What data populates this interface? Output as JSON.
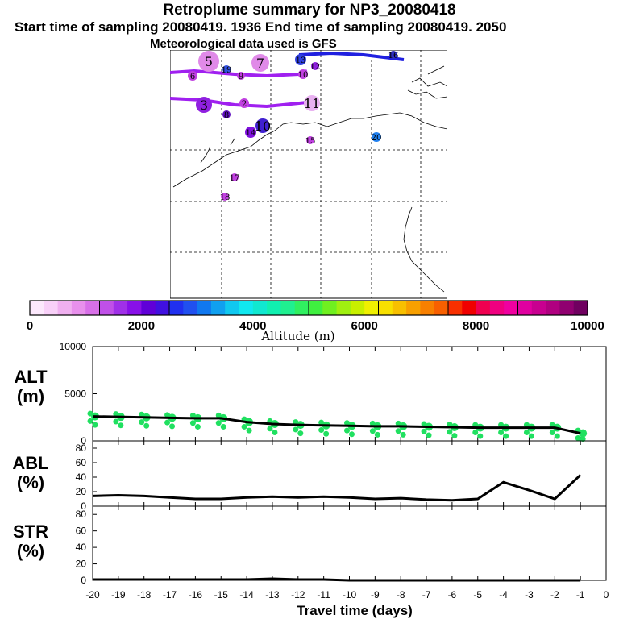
{
  "header": {
    "title": "Retroplume summary for NP3_20080418",
    "subtitle": "Start time of sampling 20080419.  1936     End time of sampling 20080419.  2050",
    "met": "Meteorological data used is GFS"
  },
  "map": {
    "markers": [
      {
        "n": "5",
        "c": "#e08ae8"
      },
      {
        "n": "7",
        "c": "#e08ae8"
      },
      {
        "n": "6",
        "c": "#c040e0"
      },
      {
        "n": "13",
        "c": "#3040e0"
      },
      {
        "n": "12",
        "c": "#9020e0"
      },
      {
        "n": "16",
        "c": "#3030c0"
      },
      {
        "n": "9",
        "c": "#c040e0"
      },
      {
        "n": "10",
        "c": "#c040e0"
      },
      {
        "n": "11",
        "c": "#e8b0f0"
      },
      {
        "n": "3",
        "c": "#9020e0"
      },
      {
        "n": "8",
        "c": "#6010c0"
      },
      {
        "n": "2",
        "c": "#c040e0"
      },
      {
        "n": "10",
        "c": "#4020d0"
      },
      {
        "n": "14",
        "c": "#8010e0"
      },
      {
        "n": "20",
        "c": "#2080f0"
      },
      {
        "n": "15",
        "c": "#c040e0"
      },
      {
        "n": "17",
        "c": "#c040e0"
      },
      {
        "n": "18",
        "c": "#c040e0"
      },
      {
        "n": "19",
        "c": "#3050e0"
      }
    ]
  },
  "colorbar": {
    "label": "Altitude (m)",
    "ticks": [
      "0",
      "2000",
      "4000",
      "6000",
      "8000",
      "10000"
    ],
    "colors": [
      "#fce8fc",
      "#f8d0f8",
      "#f0b0f0",
      "#e890ec",
      "#d870e8",
      "#c050e8",
      "#a030e8",
      "#8810e8",
      "#6000d8",
      "#4010e0",
      "#2030f0",
      "#2050f0",
      "#1078f0",
      "#10a0f0",
      "#10c8f0",
      "#10e8f0",
      "#10e8d0",
      "#10f0b0",
      "#20f090",
      "#30f060",
      "#40f040",
      "#70f020",
      "#a0f010",
      "#c8f000",
      "#f0f000",
      "#f8e000",
      "#f8c000",
      "#f8a000",
      "#f88000",
      "#f86000",
      "#f83000",
      "#f00000",
      "#f00050",
      "#f00080",
      "#f000a0",
      "#e000a0",
      "#c80090",
      "#b00080",
      "#900070",
      "#700060"
    ]
  },
  "labels": {
    "alt": "ALT\n(m)",
    "abl": "ABL\n(%)",
    "str": "STR\n(%)",
    "xlabel": "Travel time (days)"
  },
  "chart_data": [
    {
      "type": "line",
      "title": "ALT",
      "ylabel": "ALT (m)",
      "xlabel": "Travel time (days)",
      "x": [
        -20,
        -19,
        -18,
        -17,
        -16,
        -15,
        -14,
        -13,
        -12,
        -11,
        -10,
        -9,
        -8,
        -7,
        -6,
        -5,
        -4,
        -3,
        -2,
        -1
      ],
      "values": [
        2600,
        2550,
        2500,
        2450,
        2400,
        2400,
        2000,
        1800,
        1700,
        1650,
        1600,
        1550,
        1550,
        1500,
        1450,
        1400,
        1400,
        1400,
        1400,
        800
      ],
      "xlim": [
        -20,
        0
      ],
      "ylim": [
        0,
        10000
      ],
      "yticks": [
        "0",
        "5000",
        "10000"
      ],
      "scatter_color": "#20e060"
    },
    {
      "type": "line",
      "title": "ABL",
      "ylabel": "ABL (%)",
      "x": [
        -20,
        -19,
        -18,
        -17,
        -16,
        -15,
        -14,
        -13,
        -12,
        -11,
        -10,
        -9,
        -8,
        -7,
        -6,
        -5,
        -4,
        -3,
        -2,
        -1
      ],
      "values": [
        14,
        15,
        14,
        12,
        10,
        10,
        12,
        13,
        12,
        13,
        12,
        10,
        11,
        9,
        8,
        10,
        33,
        22,
        10,
        43
      ],
      "xlim": [
        -20,
        0
      ],
      "ylim": [
        0,
        90
      ],
      "yticks": [
        "0",
        "20",
        "40",
        "60",
        "80"
      ]
    },
    {
      "type": "line",
      "title": "STR",
      "ylabel": "STR (%)",
      "x": [
        -20,
        -19,
        -18,
        -17,
        -16,
        -15,
        -14,
        -13,
        -12,
        -11,
        -10,
        -9,
        -8,
        -7,
        -6,
        -5,
        -4,
        -3,
        -2,
        -1
      ],
      "values": [
        1,
        1,
        1,
        1,
        1,
        1,
        1,
        2,
        1,
        1,
        0,
        0,
        0,
        0,
        0,
        0,
        0,
        0,
        0,
        0
      ],
      "xlim": [
        -20,
        0
      ],
      "ylim": [
        0,
        90
      ],
      "yticks": [
        "0",
        "20",
        "40",
        "60",
        "80"
      ],
      "xticks": [
        "-20",
        "-19",
        "-18",
        "-17",
        "-16",
        "-15",
        "-14",
        "-13",
        "-12",
        "-11",
        "-10",
        "-9",
        "-8",
        "-7",
        "-6",
        "-5",
        "-4",
        "-3",
        "-2",
        "-1",
        "0"
      ]
    }
  ]
}
